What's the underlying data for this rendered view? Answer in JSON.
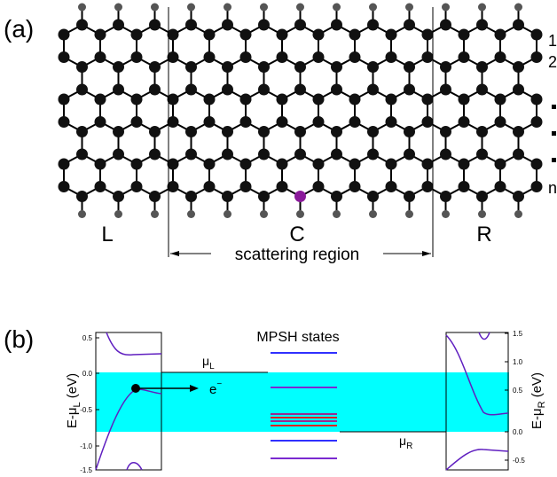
{
  "panel_a": {
    "label": "(a)",
    "regions": [
      "L",
      "C",
      "R"
    ],
    "scattering": "scattering region",
    "rows": [
      "1",
      "2",
      "n"
    ]
  },
  "panel_b": {
    "label": "(b)",
    "mpsh_title": "MPSH states",
    "left_axis": {
      "main": "E-μ",
      "sub": "L",
      "unit": " (eV)",
      "ticks": [
        "0.5",
        "0.0",
        "-0.5",
        "-1.0",
        "-1.5"
      ]
    },
    "right_axis": {
      "main": "E-μ",
      "sub": "R",
      "unit": " (eV)",
      "ticks": [
        "1.5",
        "1.0",
        "0.5",
        "0.0",
        "-0.5"
      ]
    },
    "mu_left": {
      "main": "μ",
      "sub": "L"
    },
    "mu_right": {
      "main": "μ",
      "sub": "R"
    },
    "electron": {
      "main": "e",
      "sup": "−"
    }
  }
}
